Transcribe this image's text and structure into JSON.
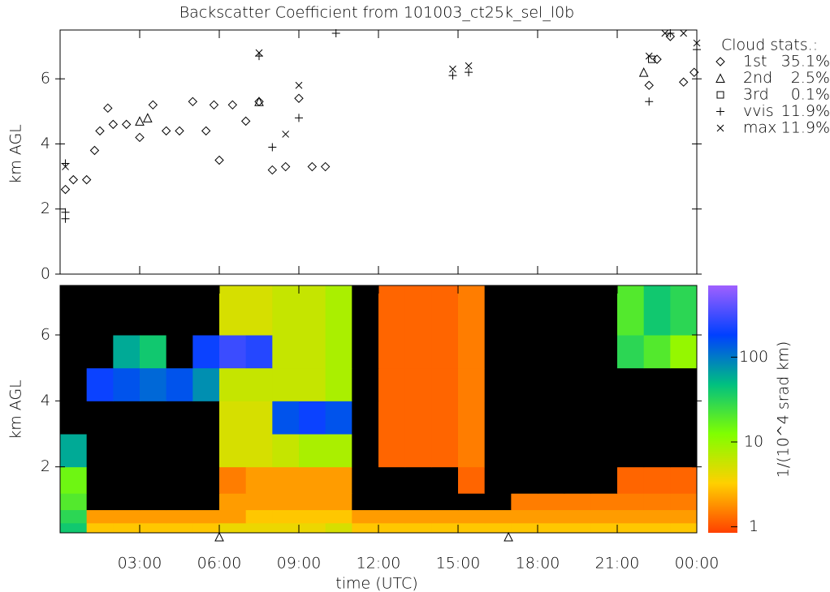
{
  "chart_data": [
    {
      "type": "scatter",
      "title": "Backscatter Coefficient from 101003_ct25k_sel_l0b",
      "y_label": "km AGL",
      "xlim": [
        0,
        24
      ],
      "ylim": [
        0,
        7.5
      ],
      "yticks": [
        0,
        2,
        4,
        6
      ],
      "legend_title": "Cloud stats.:",
      "series": [
        {
          "name": "1st",
          "stat": "35.1%",
          "marker": "diamond",
          "color": "#000000",
          "x": [
            0.2,
            0.5,
            1,
            1.3,
            1.5,
            1.8,
            2,
            2.5,
            3,
            3.5,
            4,
            4.5,
            5,
            5.5,
            5.8,
            6,
            6.5,
            7,
            7.5,
            8,
            8.5,
            9,
            9.5,
            10,
            22.2,
            22.5,
            23,
            23.5,
            23.9
          ],
          "values": [
            2.6,
            2.9,
            2.9,
            3.8,
            4.4,
            5.1,
            4.6,
            4.6,
            4.2,
            5.2,
            4.4,
            4.4,
            5.3,
            4.4,
            5.2,
            3.5,
            5.2,
            4.7,
            5.3,
            3.2,
            3.3,
            5.4,
            3.3,
            3.3,
            5.8,
            6.6,
            7.3,
            5.9,
            6.2
          ]
        },
        {
          "name": "2nd",
          "stat": "2.5%",
          "marker": "triangle",
          "color": "#000000",
          "x": [
            3,
            3.3,
            7.5,
            22
          ],
          "values": [
            4.7,
            4.8,
            5.3,
            6.2
          ]
        },
        {
          "name": "3rd",
          "stat": "0.1%",
          "marker": "square",
          "color": "#000000",
          "x": [
            22.3
          ],
          "values": [
            6.6
          ]
        },
        {
          "name": "vvis",
          "stat": "11.9%",
          "marker": "plus",
          "color": "#000000",
          "x": [
            0.2,
            0.2,
            0.2,
            7.5,
            8,
            9,
            10.4,
            14.8,
            15.4,
            22.2,
            23,
            24
          ],
          "values": [
            3.4,
            1.9,
            1.7,
            6.7,
            3.9,
            4.8,
            7.4,
            6.1,
            6.2,
            5.3,
            7.4,
            6.9
          ]
        },
        {
          "name": "max",
          "stat": "11.9%",
          "marker": "cross",
          "color": "#000000",
          "x": [
            0.2,
            7.5,
            8.5,
            9,
            14.8,
            15.4,
            22.2,
            22.8,
            23.5,
            24
          ],
          "values": [
            3.3,
            6.8,
            4.3,
            5.8,
            6.3,
            6.4,
            6.7,
            7.4,
            7.4,
            7.1
          ]
        }
      ]
    },
    {
      "type": "heatmap",
      "y_label": "km AGL",
      "x_label": "time (UTC)",
      "xlim": [
        0,
        24
      ],
      "ylim": [
        0,
        7.5
      ],
      "xticks": [
        {
          "value": 3,
          "label": "03:00"
        },
        {
          "value": 6,
          "label": "06:00"
        },
        {
          "value": 9,
          "label": "09:00"
        },
        {
          "value": 12,
          "label": "12:00"
        },
        {
          "value": 15,
          "label": "15:00"
        },
        {
          "value": 18,
          "label": "18:00"
        },
        {
          "value": 21,
          "label": "21:00"
        },
        {
          "value": 24,
          "label": "00:00"
        }
      ],
      "yticks": [
        2,
        4,
        6
      ],
      "axis_markers_x": [
        6.0,
        16.9
      ],
      "x_edges": [
        0,
        1,
        2,
        3,
        4,
        5,
        6,
        7,
        8,
        9,
        10,
        11,
        12,
        13,
        14,
        15,
        16,
        17,
        18,
        19,
        20,
        21,
        22,
        23,
        24
      ],
      "y_edges": [
        0,
        0.3,
        0.7,
        1.2,
        2,
        3,
        4,
        5,
        6,
        7.5
      ],
      "z": [
        [
          40,
          3,
          3,
          3,
          3,
          3,
          4,
          4,
          4,
          4,
          5,
          3,
          3,
          3,
          3,
          3,
          3,
          3,
          3,
          3,
          3,
          3,
          3,
          3
        ],
        [
          30,
          2,
          2,
          2,
          2,
          2,
          2,
          3,
          3,
          3,
          3,
          2,
          2,
          2,
          2,
          2,
          2,
          2,
          2,
          2,
          2,
          2,
          2,
          2
        ],
        [
          20,
          0,
          0,
          0,
          0,
          0,
          2,
          2,
          2,
          2,
          2,
          0,
          0,
          0,
          0,
          0,
          0,
          1.5,
          1.5,
          1.5,
          1.5,
          1.5,
          1.5,
          1.5
        ],
        [
          15,
          0,
          0,
          0,
          0,
          0,
          1.5,
          2,
          2,
          2,
          2,
          0,
          0,
          0,
          0,
          1.2,
          0,
          0,
          0,
          0,
          0,
          1.2,
          1.2,
          1.2
        ],
        [
          60,
          0,
          0,
          0,
          0,
          0,
          5,
          5,
          6,
          8,
          8,
          0,
          1.2,
          1.2,
          1.2,
          1.5,
          0,
          0,
          0,
          0,
          0,
          0,
          0,
          0
        ],
        [
          0,
          0,
          0,
          0,
          0,
          0,
          5,
          5,
          150,
          200,
          150,
          0,
          1.2,
          1.2,
          1.2,
          1.5,
          0,
          0,
          0,
          0,
          0,
          0,
          0,
          0
        ],
        [
          0,
          200,
          150,
          120,
          150,
          80,
          6,
          6,
          6,
          6,
          8,
          0,
          1.2,
          1.2,
          1.2,
          1.5,
          0,
          0,
          0,
          0,
          0,
          0,
          0,
          0
        ],
        [
          0,
          0,
          60,
          40,
          0,
          200,
          300,
          250,
          6,
          6,
          8,
          0,
          1.2,
          1.2,
          1.2,
          1.5,
          0,
          0,
          0,
          0,
          0,
          30,
          20,
          10
        ],
        [
          0,
          0,
          0,
          0,
          0,
          0,
          5,
          5,
          6,
          6,
          8,
          0,
          1.2,
          1.2,
          1.2,
          1.5,
          0,
          0,
          0,
          0,
          0,
          20,
          40,
          30
        ]
      ],
      "colorbar_label": "1/(10^4 srad km)",
      "clim": [
        0.85,
        700
      ],
      "log_color": true,
      "cticks": [
        1,
        10,
        100
      ],
      "colormap": [
        "#ff4000",
        "#ffd000",
        "#80ff00",
        "#00c080",
        "#0040ff",
        "#a060ff"
      ],
      "below_color": "#000000"
    }
  ]
}
